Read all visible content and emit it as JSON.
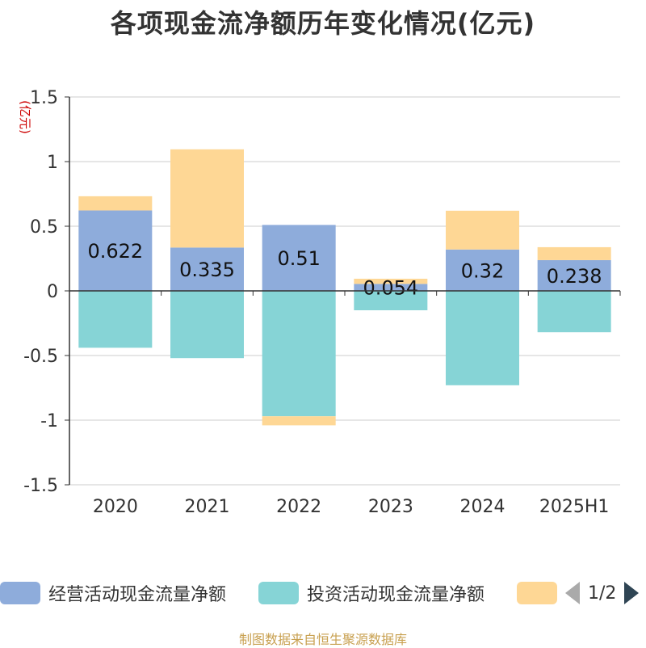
{
  "title": "各项现金流净额历年变化情况(亿元)",
  "source": "制图数据来自恒生聚源数据库",
  "pager": "1/2",
  "colors": {
    "operating": "#8eacdb",
    "investing": "#86d4d6",
    "financing": "#fed795",
    "axis": "#333333",
    "grid": "#cccccc",
    "unit_label": "#cc0000"
  },
  "chart_data": {
    "type": "bar",
    "stacked": true,
    "categories": [
      "2020",
      "2021",
      "2022",
      "2023",
      "2024",
      "2025H1"
    ],
    "ylabel": "(亿元)",
    "ylim": [
      -1.5,
      1.5
    ],
    "yticks": [
      1.5,
      1,
      0.5,
      0,
      -0.5,
      -1,
      -1.5
    ],
    "ytick_labels": [
      "1.5",
      "1",
      "0.5",
      "0",
      "-0.5",
      "-1",
      "-1.5"
    ],
    "grid": true,
    "legend_position": "bottom",
    "series": [
      {
        "name": "经营活动现金流量净额",
        "color_key": "operating",
        "values": [
          0.622,
          0.335,
          0.51,
          0.054,
          0.32,
          0.238
        ],
        "labels": [
          "0.622",
          "0.335",
          "0.51",
          "0.054",
          "0.32",
          "0.238"
        ]
      },
      {
        "name": "投资活动现金流量净额",
        "color_key": "investing",
        "values": [
          -0.44,
          -0.52,
          -0.97,
          -0.15,
          -0.73,
          -0.32
        ]
      },
      {
        "color_key": "financing",
        "values": [
          0.11,
          0.76,
          -0.07,
          0.04,
          0.3,
          0.1
        ]
      }
    ]
  }
}
